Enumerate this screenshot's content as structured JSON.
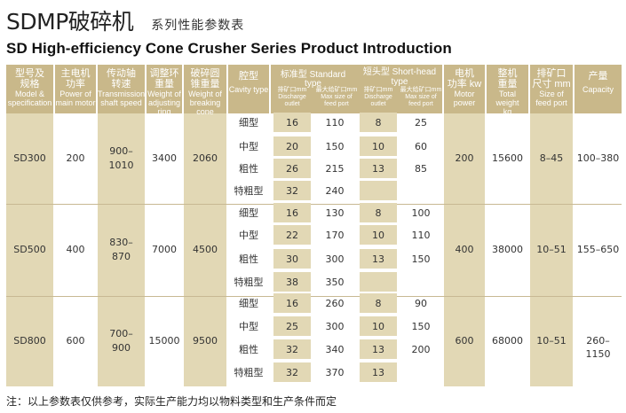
{
  "title": {
    "main": "SDMP破碎机",
    "sub": "系列性能参数表",
    "english": "SD High-efficiency Cone Crusher Series  Product Introduction"
  },
  "headers": {
    "model": [
      "型号及",
      "规格",
      "Model &",
      "specification"
    ],
    "motor": [
      "主电机",
      "功率",
      "Power of",
      "main motor"
    ],
    "speed": [
      "传动轴",
      "转速",
      "Transmission",
      "shaft speed"
    ],
    "ring": [
      "调整环",
      "重量",
      "Weight of",
      "adjusting ring"
    ],
    "cone": [
      "破碎圆",
      "锥重量",
      "Weight of",
      "breaking cone"
    ],
    "cavity": [
      "腔型",
      "Cavity type"
    ],
    "standard": "标准型 Standard type",
    "short": [
      "短头型",
      "Short-head type"
    ],
    "discharge": [
      "排矿口mm",
      "Discharge",
      "outlet"
    ],
    "feed": [
      "最大给矿口mm",
      "Max size",
      "of feed port"
    ],
    "motor_power": [
      "电机",
      "功率 kw",
      "Motor",
      "power"
    ],
    "weight": [
      "整机",
      "重量",
      "Total weight",
      "kg"
    ],
    "feed_size": [
      "排矿口",
      "尺寸 mm",
      "Size of",
      "feed port"
    ],
    "capacity": [
      "产量",
      "Capacity"
    ]
  },
  "groups": [
    {
      "model": "SD300",
      "motor": "200",
      "speed": [
        "900–",
        "1010"
      ],
      "ring": "3400",
      "cone": "2060",
      "power": "200",
      "weight": "15600",
      "feed_size": "8–45",
      "capacity": "100–380",
      "rows": [
        {
          "cavity": "细型",
          "s_d": "16",
          "s_f": "110",
          "h_d": "8",
          "h_f": "25"
        },
        {
          "cavity": "中型",
          "s_d": "20",
          "s_f": "150",
          "h_d": "10",
          "h_f": "60"
        },
        {
          "cavity": "粗性",
          "s_d": "26",
          "s_f": "215",
          "h_d": "13",
          "h_f": "85"
        },
        {
          "cavity": "特粗型",
          "s_d": "32",
          "s_f": "240",
          "h_d": "",
          "h_f": ""
        }
      ]
    },
    {
      "model": "SD500",
      "motor": "400",
      "speed": [
        "830–",
        "870"
      ],
      "ring": "7000",
      "cone": "4500",
      "power": "400",
      "weight": "38000",
      "feed_size": "10–51",
      "capacity": "155–650",
      "rows": [
        {
          "cavity": "细型",
          "s_d": "16",
          "s_f": "130",
          "h_d": "8",
          "h_f": "100"
        },
        {
          "cavity": "中型",
          "s_d": "22",
          "s_f": "170",
          "h_d": "10",
          "h_f": "110"
        },
        {
          "cavity": "粗性",
          "s_d": "30",
          "s_f": "300",
          "h_d": "13",
          "h_f": "150"
        },
        {
          "cavity": "特粗型",
          "s_d": "38",
          "s_f": "350",
          "h_d": "",
          "h_f": ""
        }
      ]
    },
    {
      "model": "SD800",
      "motor": "600",
      "speed": [
        "700–",
        "900"
      ],
      "ring": "15000",
      "cone": "9500",
      "power": "600",
      "weight": "68000",
      "feed_size": "10–51",
      "capacity": "260–1150",
      "rows": [
        {
          "cavity": "细型",
          "s_d": "16",
          "s_f": "260",
          "h_d": "8",
          "h_f": "90"
        },
        {
          "cavity": "中型",
          "s_d": "25",
          "s_f": "300",
          "h_d": "10",
          "h_f": "150"
        },
        {
          "cavity": "粗性",
          "s_d": "32",
          "s_f": "340",
          "h_d": "13",
          "h_f": "200"
        },
        {
          "cavity": "特粗型",
          "s_d": "32",
          "s_f": "370",
          "h_d": "13",
          "h_f": ""
        }
      ]
    }
  ],
  "note": "注：以上参数表仅供参考，实际生产能力均以物料类型和生产条件而定"
}
